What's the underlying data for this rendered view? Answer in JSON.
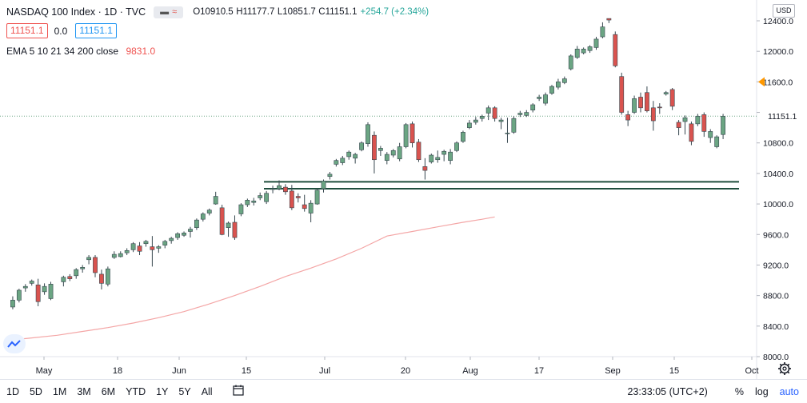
{
  "header": {
    "symbol": "NASDAQ 100 Index · 1D · TVC",
    "pill_icons": [
      "minus-icon",
      "wave-icon"
    ],
    "open": "O10910.5",
    "high": "H11177.7",
    "low": "L10851.7",
    "close": "C11151.1",
    "change": "+254.7 (+2.34%)",
    "sell_price": "11151.1",
    "spread": "0.0",
    "buy_price": "11151.1",
    "indicator": "EMA 5 10 21 34 200 close",
    "indicator_value": "9831.0",
    "currency": "USD"
  },
  "bottom_bar": {
    "ranges": [
      "1D",
      "5D",
      "1M",
      "3M",
      "6M",
      "YTD",
      "1Y",
      "5Y",
      "All"
    ],
    "time": "23:33:05 (UTC+2)",
    "percent": "%",
    "log": "log",
    "auto": "auto"
  },
  "colors": {
    "up": "#6ba583",
    "down": "#d9534f",
    "ema": "#f4a6a6",
    "hline": "#1f4e3d",
    "price_tag": "#ff9800"
  },
  "chart_data": {
    "type": "candlestick",
    "title": "NASDAQ 100 Index · 1D · TVC",
    "y_axis": {
      "min": 8000,
      "max": 12400,
      "ticks": [
        8000,
        8400,
        8800,
        9200,
        9600,
        10000,
        10400,
        10800,
        11200,
        11600,
        12000,
        12400
      ],
      "tick_labels": [
        "8000.0",
        "8400.0",
        "8800.0",
        "9200.0",
        "9600.0",
        "10000.0",
        "10400.0",
        "10800.0",
        "11200.0",
        "11600.0",
        "12000.0",
        "12400.0"
      ]
    },
    "x_axis": {
      "labels": [
        "May",
        "18",
        "Jun",
        "15",
        "Jul",
        "20",
        "Aug",
        "17",
        "Sep",
        "15",
        "Oct"
      ]
    },
    "last_price": "11151.1",
    "orange_marker_price": 11600,
    "horizontal_lines": [
      10290,
      10200
    ],
    "ema200": [
      [
        1,
        8220
      ],
      [
        4,
        8245
      ],
      [
        8,
        8280
      ],
      [
        12,
        8330
      ],
      [
        16,
        8380
      ],
      [
        20,
        8440
      ],
      [
        24,
        8510
      ],
      [
        28,
        8590
      ],
      [
        32,
        8690
      ],
      [
        36,
        8800
      ],
      [
        40,
        8920
      ],
      [
        44,
        9050
      ],
      [
        48,
        9160
      ],
      [
        52,
        9280
      ],
      [
        56,
        9420
      ],
      [
        60,
        9580
      ],
      [
        64,
        9640
      ],
      [
        68,
        9700
      ],
      [
        72,
        9760
      ],
      [
        75,
        9800
      ],
      [
        77,
        9830
      ]
    ],
    "candles": [
      [
        1,
        8650,
        8790,
        8620,
        8740
      ],
      [
        2,
        8740,
        8890,
        8710,
        8870
      ],
      [
        3,
        8900,
        8950,
        8850,
        8920
      ],
      [
        4,
        8960,
        9010,
        8930,
        8990
      ],
      [
        5,
        8940,
        9020,
        8660,
        8720
      ],
      [
        6,
        8850,
        8960,
        8810,
        8920
      ],
      [
        7,
        8760,
        8980,
        8740,
        8950
      ],
      [
        9,
        8980,
        9060,
        8920,
        9040
      ],
      [
        10,
        9050,
        9080,
        8990,
        9020
      ],
      [
        11,
        9060,
        9160,
        9020,
        9140
      ],
      [
        12,
        9150,
        9200,
        9100,
        9170
      ],
      [
        13,
        9270,
        9330,
        9210,
        9300
      ],
      [
        14,
        9300,
        9330,
        9040,
        9100
      ],
      [
        15,
        9080,
        9140,
        8880,
        8960
      ],
      [
        16,
        8950,
        9180,
        8920,
        9150
      ],
      [
        17,
        9300,
        9380,
        9280,
        9340
      ],
      [
        18,
        9310,
        9380,
        9300,
        9350
      ],
      [
        19,
        9360,
        9420,
        9330,
        9390
      ],
      [
        20,
        9400,
        9500,
        9370,
        9480
      ],
      [
        21,
        9450,
        9500,
        9330,
        9380
      ],
      [
        22,
        9480,
        9530,
        9440,
        9510
      ],
      [
        23,
        9440,
        9580,
        9180,
        9400
      ],
      [
        24,
        9420,
        9460,
        9360,
        9440
      ],
      [
        25,
        9460,
        9530,
        9420,
        9510
      ],
      [
        26,
        9520,
        9570,
        9480,
        9550
      ],
      [
        27,
        9560,
        9630,
        9530,
        9610
      ],
      [
        28,
        9590,
        9640,
        9570,
        9620
      ],
      [
        29,
        9640,
        9700,
        9560,
        9670
      ],
      [
        30,
        9690,
        9810,
        9660,
        9790
      ],
      [
        31,
        9800,
        9890,
        9770,
        9870
      ],
      [
        32,
        9880,
        9940,
        9850,
        9920
      ],
      [
        33,
        10000,
        10160,
        9990,
        10100
      ],
      [
        34,
        9950,
        9990,
        9590,
        9600
      ],
      [
        35,
        9690,
        9770,
        9570,
        9750
      ],
      [
        36,
        9760,
        9850,
        9530,
        9560
      ],
      [
        37,
        9870,
        10010,
        9840,
        9990
      ],
      [
        38,
        9990,
        10070,
        9960,
        10050
      ],
      [
        39,
        10020,
        10080,
        9980,
        10040
      ],
      [
        40,
        10080,
        10150,
        10050,
        10110
      ],
      [
        41,
        10030,
        10170,
        10000,
        10140
      ],
      [
        42,
        10200,
        10240,
        10140,
        10200
      ],
      [
        43,
        10200,
        10310,
        10180,
        10240
      ],
      [
        44,
        10220,
        10260,
        10120,
        10160
      ],
      [
        45,
        10170,
        10250,
        9920,
        9950
      ],
      [
        46,
        10100,
        10140,
        10020,
        10080
      ],
      [
        47,
        9990,
        10120,
        9900,
        9940
      ],
      [
        48,
        9880,
        10050,
        9760,
        10010
      ],
      [
        49,
        10000,
        10200,
        9990,
        10180
      ],
      [
        50,
        10200,
        10320,
        10150,
        10300
      ],
      [
        51,
        10360,
        10420,
        10320,
        10390
      ],
      [
        52,
        10520,
        10590,
        10490,
        10570
      ],
      [
        53,
        10540,
        10630,
        10510,
        10600
      ],
      [
        54,
        10620,
        10700,
        10580,
        10680
      ],
      [
        55,
        10600,
        10670,
        10530,
        10650
      ],
      [
        56,
        10710,
        10820,
        10690,
        10800
      ],
      [
        57,
        10790,
        11070,
        10750,
        11040
      ],
      [
        58,
        10900,
        10950,
        10400,
        10580
      ],
      [
        59,
        10700,
        10760,
        10630,
        10730
      ],
      [
        60,
        10570,
        10680,
        10520,
        10650
      ],
      [
        61,
        10640,
        10720,
        10610,
        10700
      ],
      [
        62,
        10590,
        10800,
        10560,
        10750
      ],
      [
        63,
        10750,
        11060,
        10730,
        11040
      ],
      [
        64,
        11050,
        11080,
        10740,
        10800
      ],
      [
        65,
        10810,
        10850,
        10550,
        10580
      ],
      [
        66,
        10490,
        10600,
        10320,
        10440
      ],
      [
        67,
        10550,
        10660,
        10530,
        10640
      ],
      [
        68,
        10580,
        10700,
        10540,
        10610
      ],
      [
        69,
        10650,
        10710,
        10560,
        10690
      ],
      [
        70,
        10570,
        10720,
        10520,
        10680
      ],
      [
        71,
        10700,
        10820,
        10680,
        10800
      ],
      [
        72,
        10820,
        10960,
        10800,
        10940
      ],
      [
        73,
        11000,
        11100,
        10980,
        11060
      ],
      [
        74,
        11070,
        11140,
        11040,
        11100
      ],
      [
        75,
        11120,
        11170,
        11080,
        11150
      ],
      [
        76,
        11190,
        11290,
        11100,
        11260
      ],
      [
        77,
        11260,
        11280,
        11080,
        11120
      ],
      [
        78,
        11080,
        11130,
        10980,
        11100
      ],
      [
        79,
        10920,
        11130,
        10800,
        10930
      ],
      [
        80,
        10940,
        11150,
        10920,
        11120
      ],
      [
        81,
        11170,
        11220,
        11140,
        11190
      ],
      [
        82,
        11160,
        11230,
        11140,
        11200
      ],
      [
        83,
        11230,
        11320,
        11200,
        11300
      ],
      [
        84,
        11380,
        11430,
        11350,
        11400
      ],
      [
        85,
        11320,
        11460,
        11290,
        11430
      ],
      [
        86,
        11450,
        11560,
        11430,
        11540
      ],
      [
        87,
        11530,
        11640,
        11500,
        11600
      ],
      [
        88,
        11590,
        11670,
        11570,
        11640
      ],
      [
        89,
        11770,
        11960,
        11750,
        11940
      ],
      [
        90,
        11920,
        12070,
        11900,
        12030
      ],
      [
        91,
        11980,
        12050,
        11960,
        12030
      ],
      [
        92,
        12010,
        12080,
        11980,
        12060
      ],
      [
        93,
        12050,
        12190,
        12020,
        12160
      ],
      [
        94,
        12190,
        12380,
        12170,
        12320
      ],
      [
        95,
        12430,
        12430,
        12370,
        12410
      ],
      [
        96,
        12220,
        12260,
        11790,
        11810
      ],
      [
        97,
        11670,
        11720,
        11170,
        11200
      ],
      [
        98,
        11170,
        11220,
        11020,
        11100
      ],
      [
        99,
        11200,
        11420,
        11180,
        11380
      ],
      [
        100,
        11400,
        11460,
        11200,
        11260
      ],
      [
        101,
        11460,
        11540,
        11200,
        11220
      ],
      [
        102,
        11260,
        11350,
        10960,
        11090
      ],
      [
        103,
        11270,
        11320,
        11180,
        11260
      ],
      [
        104,
        11440,
        11480,
        11420,
        11460
      ],
      [
        105,
        11500,
        11520,
        11230,
        11280
      ],
      [
        106,
        11070,
        11100,
        10900,
        11000
      ],
      [
        107,
        11080,
        11160,
        10910,
        11130
      ],
      [
        108,
        11050,
        11080,
        10770,
        10820
      ],
      [
        109,
        11050,
        11180,
        11020,
        11150
      ],
      [
        110,
        11170,
        11200,
        10880,
        10950
      ],
      [
        111,
        10870,
        10980,
        10800,
        10950
      ],
      [
        112,
        10750,
        10900,
        10730,
        10880
      ],
      [
        113,
        10910,
        11180,
        10850,
        11150
      ]
    ]
  }
}
